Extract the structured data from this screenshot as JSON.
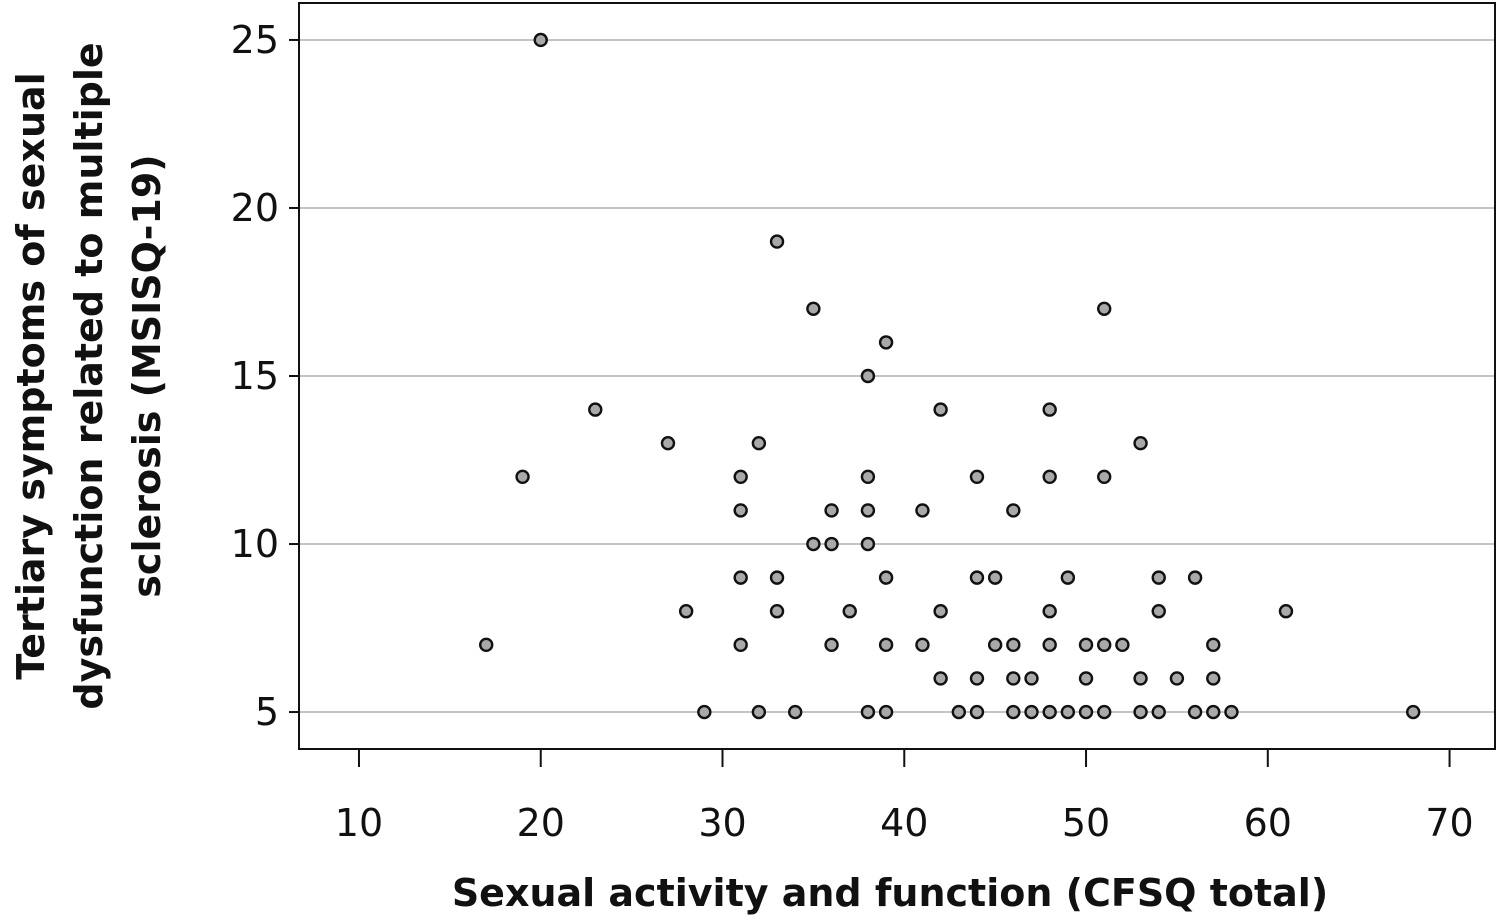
{
  "chart_data": {
    "type": "scatter",
    "title": "",
    "xlabel": "Sexual activity and function (CFSQ total)",
    "ylabel_lines": [
      "Tertiary symptoms of sexual",
      "dysfunction related to multiple",
      "sclerosis (MSISQ-19)"
    ],
    "xlim": [
      6.7,
      72.5
    ],
    "ylim": [
      3.9,
      26.1
    ],
    "xticks": [
      10,
      20,
      30,
      40,
      50,
      60,
      70
    ],
    "yticks": [
      5,
      10,
      15,
      20,
      25
    ],
    "grid": "horizontal",
    "point_fill": "#a9a9a9",
    "point_stroke": "#111111",
    "points": [
      {
        "x": 17,
        "y": 7
      },
      {
        "x": 19,
        "y": 12
      },
      {
        "x": 20,
        "y": 25
      },
      {
        "x": 23,
        "y": 14
      },
      {
        "x": 27,
        "y": 13
      },
      {
        "x": 28,
        "y": 8
      },
      {
        "x": 29,
        "y": 5
      },
      {
        "x": 31,
        "y": 12
      },
      {
        "x": 31,
        "y": 11
      },
      {
        "x": 31,
        "y": 9
      },
      {
        "x": 31,
        "y": 7
      },
      {
        "x": 32,
        "y": 13
      },
      {
        "x": 32,
        "y": 5
      },
      {
        "x": 33,
        "y": 19
      },
      {
        "x": 33,
        "y": 9
      },
      {
        "x": 33,
        "y": 8
      },
      {
        "x": 34,
        "y": 5
      },
      {
        "x": 35,
        "y": 17
      },
      {
        "x": 35,
        "y": 10
      },
      {
        "x": 36,
        "y": 11
      },
      {
        "x": 36,
        "y": 10
      },
      {
        "x": 36,
        "y": 7
      },
      {
        "x": 37,
        "y": 8
      },
      {
        "x": 38,
        "y": 15
      },
      {
        "x": 38,
        "y": 12
      },
      {
        "x": 38,
        "y": 11
      },
      {
        "x": 38,
        "y": 10
      },
      {
        "x": 38,
        "y": 5
      },
      {
        "x": 39,
        "y": 16
      },
      {
        "x": 39,
        "y": 9
      },
      {
        "x": 39,
        "y": 7
      },
      {
        "x": 39,
        "y": 5
      },
      {
        "x": 41,
        "y": 11
      },
      {
        "x": 41,
        "y": 7
      },
      {
        "x": 42,
        "y": 14
      },
      {
        "x": 42,
        "y": 8
      },
      {
        "x": 42,
        "y": 6
      },
      {
        "x": 43,
        "y": 5
      },
      {
        "x": 44,
        "y": 12
      },
      {
        "x": 44,
        "y": 9
      },
      {
        "x": 44,
        "y": 6
      },
      {
        "x": 44,
        "y": 5
      },
      {
        "x": 45,
        "y": 9
      },
      {
        "x": 45,
        "y": 7
      },
      {
        "x": 46,
        "y": 11
      },
      {
        "x": 46,
        "y": 7
      },
      {
        "x": 46,
        "y": 6
      },
      {
        "x": 46,
        "y": 5
      },
      {
        "x": 47,
        "y": 6
      },
      {
        "x": 47,
        "y": 5
      },
      {
        "x": 48,
        "y": 14
      },
      {
        "x": 48,
        "y": 12
      },
      {
        "x": 48,
        "y": 8
      },
      {
        "x": 48,
        "y": 7
      },
      {
        "x": 48,
        "y": 5
      },
      {
        "x": 49,
        "y": 9
      },
      {
        "x": 49,
        "y": 5
      },
      {
        "x": 50,
        "y": 7
      },
      {
        "x": 50,
        "y": 6
      },
      {
        "x": 50,
        "y": 5
      },
      {
        "x": 51,
        "y": 17
      },
      {
        "x": 51,
        "y": 12
      },
      {
        "x": 51,
        "y": 7
      },
      {
        "x": 51,
        "y": 5
      },
      {
        "x": 52,
        "y": 7
      },
      {
        "x": 53,
        "y": 13
      },
      {
        "x": 53,
        "y": 6
      },
      {
        "x": 53,
        "y": 5
      },
      {
        "x": 54,
        "y": 9
      },
      {
        "x": 54,
        "y": 8
      },
      {
        "x": 54,
        "y": 5
      },
      {
        "x": 55,
        "y": 6
      },
      {
        "x": 56,
        "y": 9
      },
      {
        "x": 56,
        "y": 5
      },
      {
        "x": 57,
        "y": 7
      },
      {
        "x": 57,
        "y": 6
      },
      {
        "x": 57,
        "y": 5
      },
      {
        "x": 58,
        "y": 5
      },
      {
        "x": 61,
        "y": 8
      },
      {
        "x": 68,
        "y": 5
      }
    ]
  }
}
